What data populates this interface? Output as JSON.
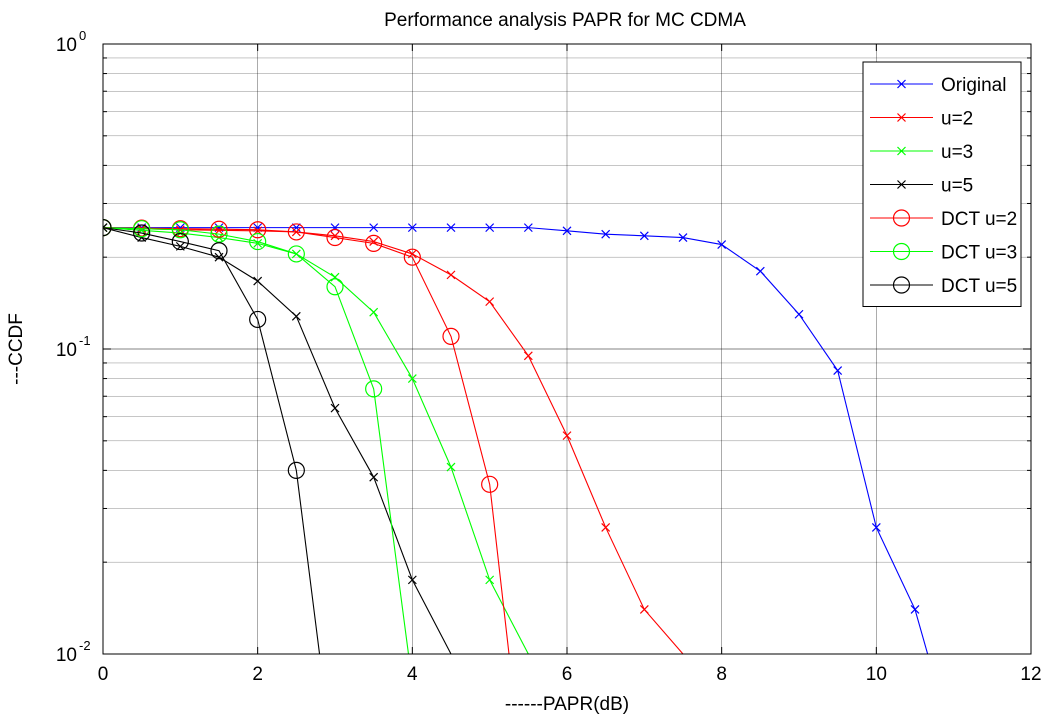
{
  "chart_data": {
    "type": "line",
    "title": "Performance analysis PAPR for MC CDMA",
    "xlabel": "------PAPR(dB)",
    "ylabel": "---CCDF",
    "xlim": [
      0,
      12
    ],
    "ylim": [
      0.01,
      1
    ],
    "yscale": "log",
    "grid": true,
    "legend_position": "top-right",
    "xticks": [
      "0",
      "2",
      "4",
      "6",
      "8",
      "10",
      "12"
    ],
    "yticks": [
      {
        "value": 1,
        "base": "10",
        "exp": "0"
      },
      {
        "value": 0.1,
        "base": "10",
        "exp": "-1"
      },
      {
        "value": 0.01,
        "base": "10",
        "exp": "-2"
      }
    ],
    "series": [
      {
        "name": "Original",
        "color": "#0000ff",
        "marker": "x",
        "x": [
          0,
          0.5,
          1,
          1.5,
          2,
          2.5,
          3,
          3.5,
          4,
          4.5,
          5,
          5.5,
          6,
          6.5,
          7,
          7.5,
          8,
          8.5,
          9,
          9.5,
          10,
          10.5,
          11
        ],
        "y": [
          0.25,
          0.25,
          0.25,
          0.25,
          0.25,
          0.25,
          0.25,
          0.25,
          0.25,
          0.25,
          0.25,
          0.25,
          0.244,
          0.238,
          0.235,
          0.232,
          0.22,
          0.18,
          0.13,
          0.085,
          0.026,
          0.014,
          0.005
        ]
      },
      {
        "name": "u=2",
        "color": "#ff0000",
        "marker": "x",
        "x": [
          0,
          0.5,
          1,
          1.5,
          2,
          2.5,
          3,
          3.5,
          4,
          4.5,
          5,
          5.5,
          6,
          6.5,
          7,
          7.5
        ],
        "y": [
          0.25,
          0.248,
          0.246,
          0.245,
          0.244,
          0.242,
          0.235,
          0.225,
          0.205,
          0.175,
          0.143,
          0.095,
          0.052,
          0.026,
          0.014,
          0.01
        ]
      },
      {
        "name": "u=3",
        "color": "#00ff00",
        "marker": "x",
        "x": [
          0,
          0.5,
          1,
          1.5,
          2,
          2.5,
          3,
          3.5,
          4,
          4.5,
          5,
          5.5
        ],
        "y": [
          0.25,
          0.245,
          0.24,
          0.232,
          0.222,
          0.205,
          0.172,
          0.132,
          0.08,
          0.041,
          0.0175,
          0.01
        ]
      },
      {
        "name": "u=5",
        "color": "#000000",
        "marker": "x",
        "x": [
          0,
          0.5,
          1,
          1.5,
          2,
          2.5,
          3,
          3.5,
          4,
          4.5
        ],
        "y": [
          0.25,
          0.232,
          0.217,
          0.2,
          0.167,
          0.128,
          0.064,
          0.038,
          0.0175,
          0.01
        ]
      },
      {
        "name": "DCT u=2",
        "color": "#ff0000",
        "marker": "o",
        "x": [
          0,
          0.5,
          1,
          1.5,
          2,
          2.5,
          3,
          3.5,
          4,
          4.5,
          5,
          5.25
        ],
        "y": [
          0.25,
          0.249,
          0.248,
          0.247,
          0.246,
          0.242,
          0.232,
          0.222,
          0.2,
          0.11,
          0.036,
          0.01
        ]
      },
      {
        "name": "DCT u=3",
        "color": "#00ff00",
        "marker": "o",
        "x": [
          0,
          0.5,
          1,
          1.5,
          2,
          2.5,
          3,
          3.5,
          3.95
        ],
        "y": [
          0.25,
          0.248,
          0.246,
          0.238,
          0.225,
          0.205,
          0.16,
          0.074,
          0.01
        ]
      },
      {
        "name": "DCT u=5",
        "color": "#000000",
        "marker": "o",
        "x": [
          0,
          0.5,
          1,
          1.5,
          2,
          2.5,
          2.8
        ],
        "y": [
          0.25,
          0.24,
          0.225,
          0.21,
          0.125,
          0.04,
          0.01
        ]
      }
    ]
  }
}
